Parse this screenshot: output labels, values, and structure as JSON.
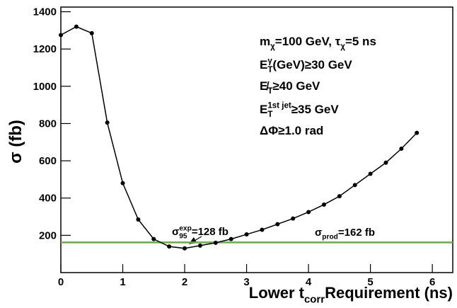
{
  "chart_data": {
    "type": "line",
    "y_label": "σ (fb)",
    "x_label": [
      {
        "text": "Lower t"
      },
      {
        "sub": "corr"
      },
      {
        "text": " Requirement (ns)"
      }
    ],
    "x": [
      0,
      0.25,
      0.5,
      0.75,
      1.0,
      1.25,
      1.5,
      1.75,
      2.0,
      2.25,
      2.5,
      2.75,
      3.0,
      3.25,
      3.5,
      3.75,
      4.0,
      4.25,
      4.5,
      4.75,
      5.0,
      5.25,
      5.5,
      5.75
    ],
    "series": [
      {
        "color": "#000000",
        "values": [
          1275,
          1320,
          1285,
          805,
          480,
          285,
          180,
          140,
          130,
          145,
          160,
          180,
          205,
          230,
          260,
          290,
          325,
          365,
          410,
          470,
          530,
          590,
          665,
          750
        ]
      }
    ],
    "reference_line": {
      "value": 162,
      "color": "#5cb82e"
    },
    "xlim": [
      0,
      6.33
    ],
    "ylim": [
      0,
      1425
    ],
    "xticks": [
      0,
      1,
      2,
      3,
      4,
      5,
      6
    ],
    "yticks": [
      200,
      400,
      600,
      800,
      1000,
      1200,
      1400
    ],
    "annotations": [
      [
        {
          "text": "m"
        },
        {
          "sub": "χ"
        },
        {
          "text": "=100 GeV, τ"
        },
        {
          "sub": "χ"
        },
        {
          "text": "=5 ns"
        }
      ],
      [
        {
          "text": "E"
        },
        {
          "sup": "γ"
        },
        {
          "sub": "T"
        },
        {
          "text": "(GeV)≥30 GeV"
        }
      ],
      [
        {
          "text": "E̸"
        },
        {
          "sub": "T"
        },
        {
          "text": "≥40 GeV"
        }
      ],
      [
        {
          "text": "E"
        },
        {
          "sup": "1st jet"
        },
        {
          "sub": "T"
        },
        {
          "text": "≥35 GeV"
        }
      ],
      [
        {
          "text": "ΔΦ≥1.0 rad"
        }
      ],
      [
        {
          "text": "σ"
        },
        {
          "sup": "exp"
        },
        {
          "sub": "95"
        },
        {
          "text": "=128 fb"
        }
      ],
      [
        {
          "text": "σ"
        },
        {
          "sub": "prod"
        },
        {
          "text": "=162 fb"
        }
      ]
    ]
  }
}
